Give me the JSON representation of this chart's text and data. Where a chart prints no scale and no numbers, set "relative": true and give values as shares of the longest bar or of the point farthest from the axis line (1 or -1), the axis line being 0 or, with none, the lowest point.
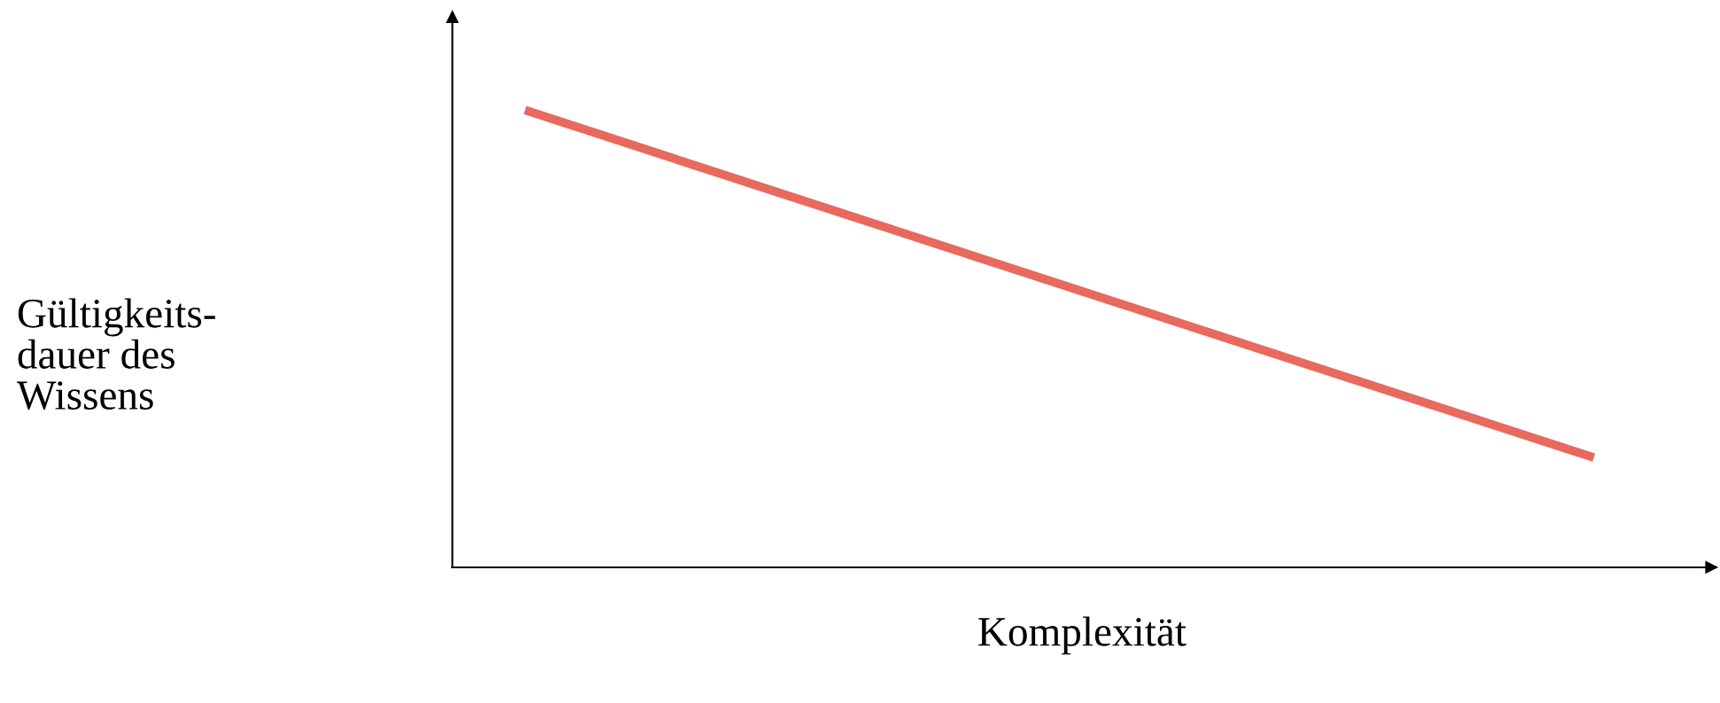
{
  "chart_data": {
    "type": "line",
    "relative": true,
    "xlabel": "Komplexität",
    "ylabel": "Gültigkeits-\ndauer des\nWissens",
    "categories": [
      null,
      null
    ],
    "series": [
      {
        "color": "#e8695e",
        "values": [
          1,
          0.24
        ]
      }
    ],
    "grid": false,
    "legend": false,
    "tick_labels": false,
    "marker": "none",
    "line_style": "solid"
  }
}
